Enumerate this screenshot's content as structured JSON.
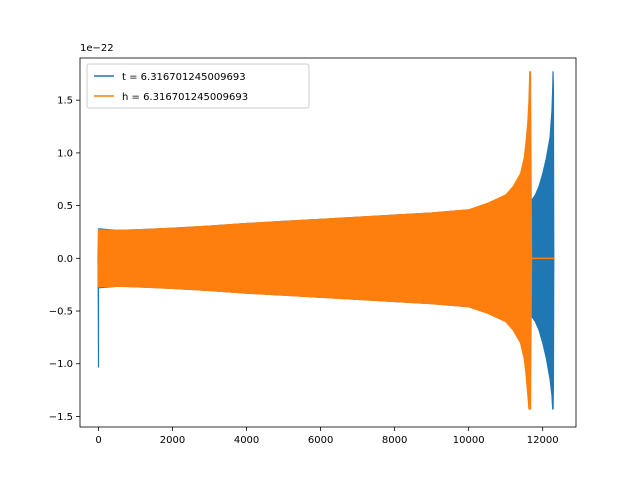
{
  "chart_data": {
    "type": "line",
    "title": "",
    "xlabel": "",
    "ylabel": "",
    "offset_text": "1e−22",
    "xlim": [
      -500,
      12900
    ],
    "ylim": [
      -1.6,
      1.9
    ],
    "xticks": [
      0,
      2000,
      4000,
      6000,
      8000,
      10000,
      12000
    ],
    "yticks": [
      -1.5,
      -1.0,
      -0.5,
      0.0,
      0.5,
      1.0,
      1.5
    ],
    "xtick_labels": [
      "0",
      "2000",
      "4000",
      "6000",
      "8000",
      "10000",
      "12000"
    ],
    "ytick_labels": [
      "−1.5",
      "−1.0",
      "−0.5",
      "0.0",
      "0.5",
      "1.0",
      "1.5"
    ],
    "grid": false,
    "legend_position": "upper-left",
    "series": [
      {
        "name": "t = 6.316701245009693",
        "color": "#1f77b4",
        "x": [
          -10,
          0,
          0,
          5,
          500,
          1000,
          2000,
          3000,
          4000,
          5000,
          6000,
          7000,
          8000,
          9000,
          10000,
          10500,
          11000,
          11300,
          11500,
          11600,
          11700,
          11800,
          11900,
          12000,
          12100,
          12200,
          12250,
          12270,
          12280,
          12290,
          12300
        ],
        "upper": [
          0.0,
          0.28,
          0.28,
          0.28,
          0.265,
          0.27,
          0.285,
          0.305,
          0.33,
          0.35,
          0.37,
          0.39,
          0.41,
          0.43,
          0.46,
          0.48,
          0.5,
          0.5,
          0.52,
          0.53,
          0.55,
          0.6,
          0.68,
          0.8,
          0.95,
          1.15,
          1.4,
          1.6,
          1.77,
          1.6,
          0.0
        ],
        "lower": [
          0.0,
          -1.03,
          -0.28,
          -0.28,
          -0.265,
          -0.27,
          -0.285,
          -0.305,
          -0.33,
          -0.35,
          -0.37,
          -0.39,
          -0.41,
          -0.43,
          -0.46,
          -0.48,
          -0.5,
          -0.5,
          -0.52,
          -0.53,
          -0.55,
          -0.6,
          -0.68,
          -0.8,
          -0.95,
          -1.15,
          -1.3,
          -1.43,
          -1.43,
          -1.2,
          0.0
        ]
      },
      {
        "name": "h = 6.316701245009693",
        "color": "#ff7f0e",
        "x": [
          0,
          500,
          1000,
          2000,
          3000,
          4000,
          5000,
          6000,
          7000,
          8000,
          9000,
          10000,
          10500,
          11000,
          11200,
          11400,
          11500,
          11550,
          11600,
          11630,
          11650,
          11670,
          11700,
          12300
        ],
        "upper": [
          0.27,
          0.265,
          0.27,
          0.285,
          0.305,
          0.33,
          0.35,
          0.37,
          0.39,
          0.41,
          0.43,
          0.46,
          0.52,
          0.6,
          0.68,
          0.8,
          0.95,
          1.1,
          1.3,
          1.5,
          1.77,
          1.77,
          0.0,
          0.0
        ],
        "lower": [
          -0.27,
          -0.265,
          -0.27,
          -0.285,
          -0.305,
          -0.33,
          -0.35,
          -0.37,
          -0.39,
          -0.41,
          -0.43,
          -0.46,
          -0.52,
          -0.6,
          -0.68,
          -0.8,
          -0.95,
          -1.1,
          -1.3,
          -1.43,
          -1.43,
          -1.43,
          0.0,
          0.0
        ]
      }
    ]
  }
}
